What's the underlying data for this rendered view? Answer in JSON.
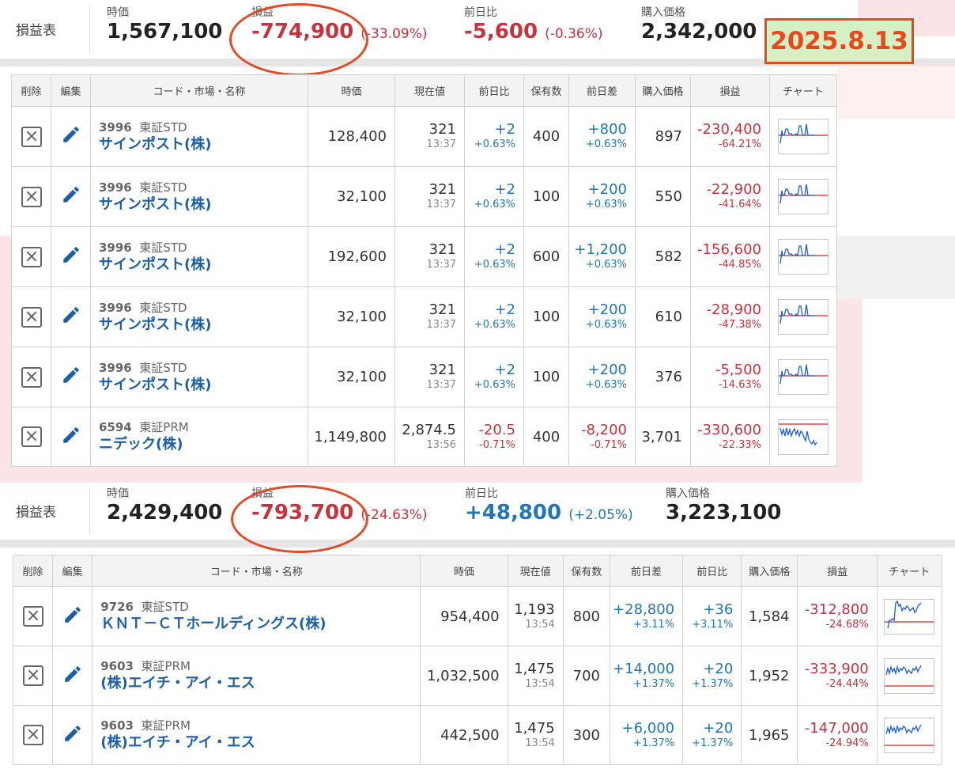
{
  "date_label": "2025.8.13",
  "colors": {
    "negative": "#c8323c",
    "positive": "#1f76b8",
    "annotation": "#e34a26",
    "date_bg": "#d6f0c6"
  },
  "top": {
    "title": "損益表",
    "value_label": "時価",
    "value": "1,567,100",
    "pl_label": "損益",
    "pl": "-774,900",
    "pl_pct": "(-33.09%)",
    "change_label": "前日比",
    "change": "-5,600",
    "change_pct": "(-0.36%)",
    "cost_label": "購入価格",
    "cost": "2,342,000"
  },
  "table1": {
    "headers": [
      "削除",
      "編集",
      "コード・市場・名称",
      "時価",
      "現在値",
      "前日比",
      "保有数",
      "前日差",
      "購入価格",
      "損益",
      "チャート"
    ],
    "rows": [
      {
        "code": "3996",
        "market": "東証STD",
        "name": "サインポスト(株)",
        "value": "128,400",
        "price": "321",
        "time": "13:37",
        "chg": "+2",
        "chg_pct": "+0.63%",
        "qty": "400",
        "diff": "+800",
        "diff_pct": "+0.63%",
        "cost": "897",
        "pl": "-230,400",
        "pl_pct": "-64.21%"
      },
      {
        "code": "3996",
        "market": "東証STD",
        "name": "サインポスト(株)",
        "value": "32,100",
        "price": "321",
        "time": "13:37",
        "chg": "+2",
        "chg_pct": "+0.63%",
        "qty": "100",
        "diff": "+200",
        "diff_pct": "+0.63%",
        "cost": "550",
        "pl": "-22,900",
        "pl_pct": "-41.64%"
      },
      {
        "code": "3996",
        "market": "東証STD",
        "name": "サインポスト(株)",
        "value": "192,600",
        "price": "321",
        "time": "13:37",
        "chg": "+2",
        "chg_pct": "+0.63%",
        "qty": "600",
        "diff": "+1,200",
        "diff_pct": "+0.63%",
        "cost": "582",
        "pl": "-156,600",
        "pl_pct": "-44.85%"
      },
      {
        "code": "3996",
        "market": "東証STD",
        "name": "サインポスト(株)",
        "value": "32,100",
        "price": "321",
        "time": "13:37",
        "chg": "+2",
        "chg_pct": "+0.63%",
        "qty": "100",
        "diff": "+200",
        "diff_pct": "+0.63%",
        "cost": "610",
        "pl": "-28,900",
        "pl_pct": "-47.38%"
      },
      {
        "code": "3996",
        "market": "東証STD",
        "name": "サインポスト(株)",
        "value": "32,100",
        "price": "321",
        "time": "13:37",
        "chg": "+2",
        "chg_pct": "+0.63%",
        "qty": "100",
        "diff": "+200",
        "diff_pct": "+0.63%",
        "cost": "376",
        "pl": "-5,500",
        "pl_pct": "-14.63%"
      },
      {
        "code": "6594",
        "market": "東証PRM",
        "name": "ニデック(株)",
        "value": "1,149,800",
        "price": "2,874.5",
        "time": "13:56",
        "chg": "-20.5",
        "chg_pct": "-0.71%",
        "qty": "400",
        "diff": "-8,200",
        "diff_pct": "-0.71%",
        "cost": "3,701",
        "pl": "-330,600",
        "pl_pct": "-22.33%"
      }
    ]
  },
  "bottom": {
    "title": "損益表",
    "value_label": "時価",
    "value": "2,429,400",
    "pl_label": "損益",
    "pl": "-793,700",
    "pl_pct": "(-24.63%)",
    "change_label": "前日比",
    "change": "+48,800",
    "change_pct": "(+2.05%)",
    "cost_label": "購入価格",
    "cost": "3,223,100"
  },
  "table2": {
    "headers": [
      "削除",
      "編集",
      "コード・市場・名称",
      "時価",
      "現在値",
      "保有数",
      "前日差",
      "前日比",
      "購入価格",
      "損益",
      "チャート"
    ],
    "rows": [
      {
        "code": "9726",
        "market": "東証STD",
        "name": "ＫＮＴ－ＣＴホールディングス(株)",
        "value": "954,400",
        "price": "1,193",
        "time": "13:54",
        "qty": "800",
        "diff": "+28,800",
        "diff_pct": "+3.11%",
        "chg": "+36",
        "chg_pct": "+3.11%",
        "cost": "1,584",
        "pl": "-312,800",
        "pl_pct": "-24.68%"
      },
      {
        "code": "9603",
        "market": "東証PRM",
        "name": "(株)エイチ・アイ・エス",
        "value": "1,032,500",
        "price": "1,475",
        "time": "13:54",
        "qty": "700",
        "diff": "+14,000",
        "diff_pct": "+1.37%",
        "chg": "+20",
        "chg_pct": "+1.37%",
        "cost": "1,952",
        "pl": "-333,900",
        "pl_pct": "-24.44%"
      },
      {
        "code": "9603",
        "market": "東証PRM",
        "name": "(株)エイチ・アイ・エス",
        "value": "442,500",
        "price": "1,475",
        "time": "13:54",
        "qty": "300",
        "diff": "+6,000",
        "diff_pct": "+1.37%",
        "chg": "+20",
        "chg_pct": "+1.37%",
        "cost": "1,965",
        "pl": "-147,000",
        "pl_pct": "-24.94%"
      }
    ]
  }
}
